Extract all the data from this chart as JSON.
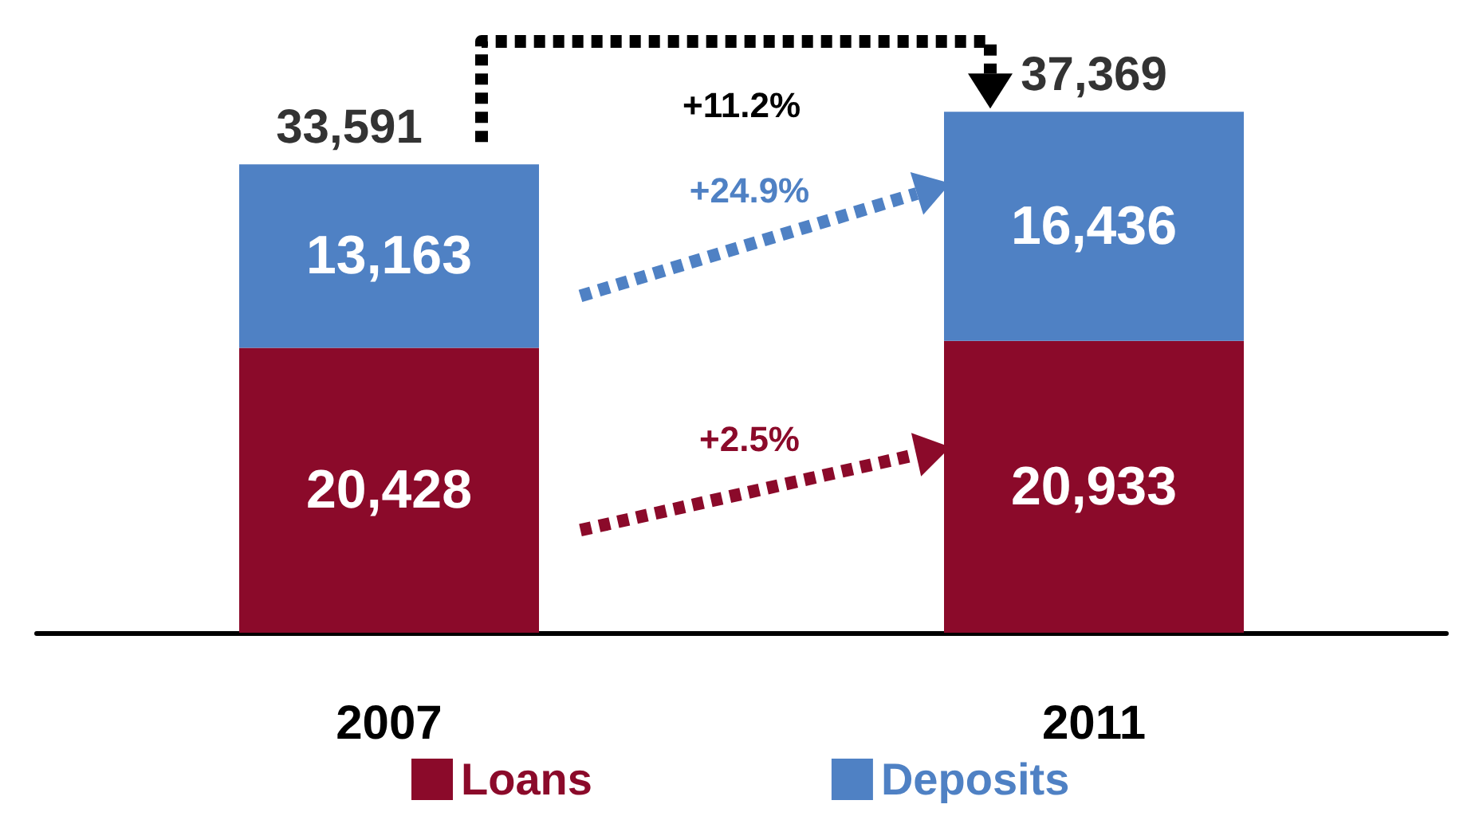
{
  "chart_data": {
    "type": "bar",
    "stacked": true,
    "categories": [
      "2007",
      "2011"
    ],
    "series": [
      {
        "name": "Loans",
        "color": "#8b0a2a",
        "values": [
          20428,
          20933
        ],
        "value_labels": [
          "20,428",
          "20,933"
        ]
      },
      {
        "name": "Deposits",
        "color": "#4f81c4",
        "values": [
          13163,
          16436
        ],
        "value_labels": [
          "13,163",
          "16,436"
        ]
      }
    ],
    "totals": [
      "33,591",
      "37,369"
    ],
    "annotations": [
      "+11.2%",
      "+24.9%",
      "+2.5%"
    ],
    "legend": "bottom",
    "grid": false
  }
}
